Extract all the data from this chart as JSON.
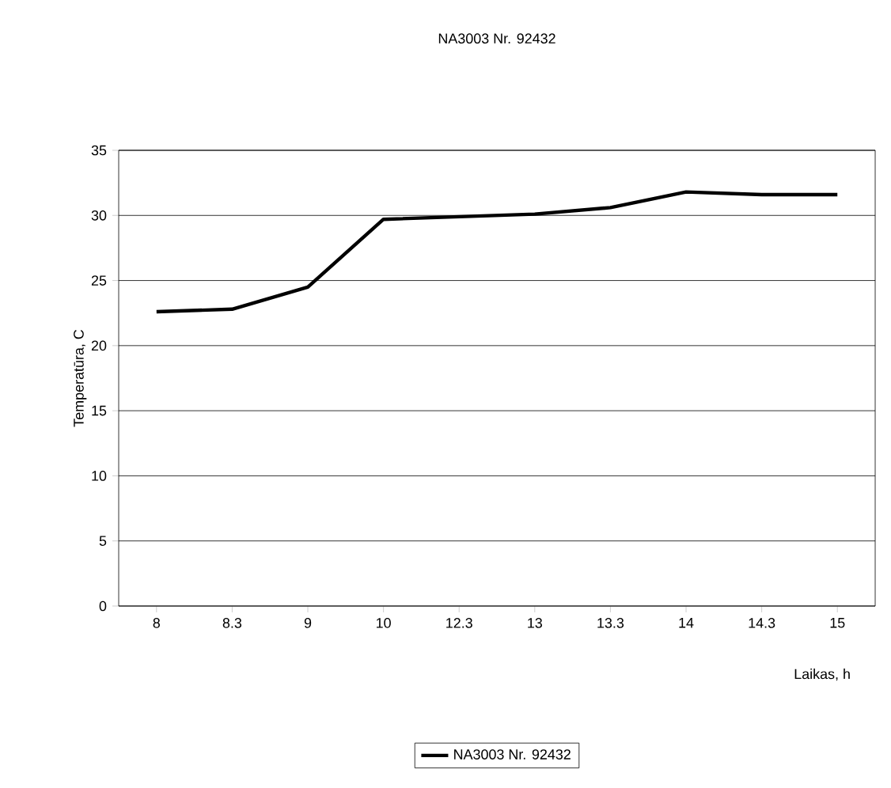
{
  "chart_data": {
    "type": "line",
    "title": "NA3003 Nr. 92432",
    "xlabel": "Laikas, h",
    "ylabel": "Temperatūra, C",
    "categories": [
      "8",
      "8.3",
      "9",
      "10",
      "12.3",
      "13",
      "13.3",
      "14",
      "14.3",
      "15"
    ],
    "series": [
      {
        "name": "NA3003 Nr. 92432",
        "color": "#000000",
        "values": [
          22.6,
          22.8,
          24.5,
          29.7,
          29.9,
          30.1,
          30.6,
          31.8,
          31.6,
          31.6
        ]
      }
    ],
    "ylim": [
      0,
      35
    ],
    "yticks": [
      0,
      5,
      10,
      15,
      20,
      25,
      30,
      35
    ],
    "grid": "y",
    "legend": "bottom",
    "marker": "none",
    "line_style": "solid"
  }
}
